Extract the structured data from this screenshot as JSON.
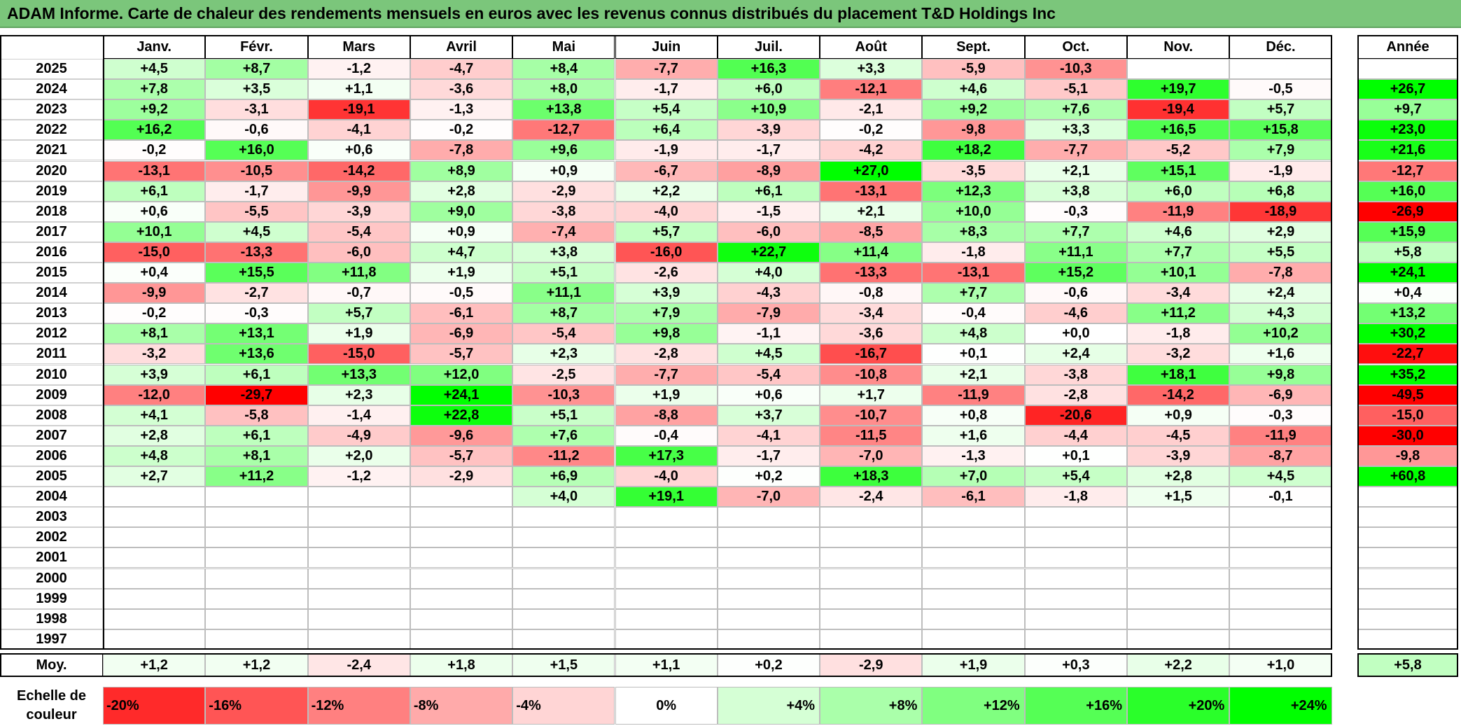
{
  "title": "ADAM Informe. Carte de chaleur des rendements mensuels en euros avec les revenus connus distribués du placement T&D Holdings Inc",
  "chart_data": {
    "type": "heatmap",
    "columns": [
      "Janv.",
      "Févr.",
      "Mars",
      "Avril",
      "Mai",
      "Juin",
      "Juil.",
      "Août",
      "Sept.",
      "Oct.",
      "Nov.",
      "Déc."
    ],
    "year_column_label": "Année",
    "rows": [
      {
        "year": "2025",
        "months": [
          "+4,5",
          "+8,7",
          "-1,2",
          "-4,7",
          "+8,4",
          "-7,7",
          "+16,3",
          "+3,3",
          "-5,9",
          "-10,3",
          "",
          ""
        ],
        "annual": ""
      },
      {
        "year": "2024",
        "months": [
          "+7,8",
          "+3,5",
          "+1,1",
          "-3,6",
          "+8,0",
          "-1,7",
          "+6,0",
          "-12,1",
          "+4,6",
          "-5,1",
          "+19,7",
          "-0,5"
        ],
        "annual": "+26,7"
      },
      {
        "year": "2023",
        "months": [
          "+9,2",
          "-3,1",
          "-19,1",
          "-1,3",
          "+13,8",
          "+5,4",
          "+10,9",
          "-2,1",
          "+9,2",
          "+7,6",
          "-19,4",
          "+5,7"
        ],
        "annual": "+9,7"
      },
      {
        "year": "2022",
        "months": [
          "+16,2",
          "-0,6",
          "-4,1",
          "-0,2",
          "-12,7",
          "+6,4",
          "-3,9",
          "-0,2",
          "-9,8",
          "+3,3",
          "+16,5",
          "+15,8"
        ],
        "annual": "+23,0"
      },
      {
        "year": "2021",
        "months": [
          "-0,2",
          "+16,0",
          "+0,6",
          "-7,8",
          "+9,6",
          "-1,9",
          "-1,7",
          "-4,2",
          "+18,2",
          "-7,7",
          "-5,2",
          "+7,9"
        ],
        "annual": "+21,6"
      },
      {
        "year": "2020",
        "months": [
          "-13,1",
          "-10,5",
          "-14,2",
          "+8,9",
          "+0,9",
          "-6,7",
          "-8,9",
          "+27,0",
          "-3,5",
          "+2,1",
          "+15,1",
          "-1,9"
        ],
        "annual": "-12,7"
      },
      {
        "year": "2019",
        "months": [
          "+6,1",
          "-1,7",
          "-9,9",
          "+2,8",
          "-2,9",
          "+2,2",
          "+6,1",
          "-13,1",
          "+12,3",
          "+3,8",
          "+6,0",
          "+6,8"
        ],
        "annual": "+16,0"
      },
      {
        "year": "2018",
        "months": [
          "+0,6",
          "-5,5",
          "-3,9",
          "+9,0",
          "-3,8",
          "-4,0",
          "-1,5",
          "+2,1",
          "+10,0",
          "-0,3",
          "-11,9",
          "-18,9"
        ],
        "annual": "-26,9"
      },
      {
        "year": "2017",
        "months": [
          "+10,1",
          "+4,5",
          "-5,4",
          "+0,9",
          "-7,4",
          "+5,7",
          "-6,0",
          "-8,5",
          "+8,3",
          "+7,7",
          "+4,6",
          "+2,9"
        ],
        "annual": "+15,9"
      },
      {
        "year": "2016",
        "months": [
          "-15,0",
          "-13,3",
          "-6,0",
          "+4,7",
          "+3,8",
          "-16,0",
          "+22,7",
          "+11,4",
          "-1,8",
          "+11,1",
          "+7,7",
          "+5,5"
        ],
        "annual": "+5,8"
      },
      {
        "year": "2015",
        "months": [
          "+0,4",
          "+15,5",
          "+11,8",
          "+1,9",
          "+5,1",
          "-2,6",
          "+4,0",
          "-13,3",
          "-13,1",
          "+15,2",
          "+10,1",
          "-7,8"
        ],
        "annual": "+24,1"
      },
      {
        "year": "2014",
        "months": [
          "-9,9",
          "-2,7",
          "-0,7",
          "-0,5",
          "+11,1",
          "+3,9",
          "-4,3",
          "-0,8",
          "+7,7",
          "-0,6",
          "-3,4",
          "+2,4"
        ],
        "annual": "+0,4"
      },
      {
        "year": "2013",
        "months": [
          "-0,2",
          "-0,3",
          "+5,7",
          "-6,1",
          "+8,7",
          "+7,9",
          "-7,9",
          "-3,4",
          "-0,4",
          "-4,6",
          "+11,2",
          "+4,3"
        ],
        "annual": "+13,2"
      },
      {
        "year": "2012",
        "months": [
          "+8,1",
          "+13,1",
          "+1,9",
          "-6,9",
          "-5,4",
          "+9,8",
          "-1,1",
          "-3,6",
          "+4,8",
          "+0,0",
          "-1,8",
          "+10,2"
        ],
        "annual": "+30,2"
      },
      {
        "year": "2011",
        "months": [
          "-3,2",
          "+13,6",
          "-15,0",
          "-5,7",
          "+2,3",
          "-2,8",
          "+4,5",
          "-16,7",
          "+0,1",
          "+2,4",
          "-3,2",
          "+1,6"
        ],
        "annual": "-22,7"
      },
      {
        "year": "2010",
        "months": [
          "+3,9",
          "+6,1",
          "+13,3",
          "+12,0",
          "-2,5",
          "-7,7",
          "-5,4",
          "-10,8",
          "+2,1",
          "-3,8",
          "+18,1",
          "+9,8"
        ],
        "annual": "+35,2"
      },
      {
        "year": "2009",
        "months": [
          "-12,0",
          "-29,7",
          "+2,3",
          "+24,1",
          "-10,3",
          "+1,9",
          "+0,6",
          "+1,7",
          "-11,9",
          "-2,8",
          "-14,2",
          "-6,9"
        ],
        "annual": "-49,5"
      },
      {
        "year": "2008",
        "months": [
          "+4,1",
          "-5,8",
          "-1,4",
          "+22,8",
          "+5,1",
          "-8,8",
          "+3,7",
          "-10,7",
          "+0,8",
          "-20,6",
          "+0,9",
          "-0,3"
        ],
        "annual": "-15,0"
      },
      {
        "year": "2007",
        "months": [
          "+2,8",
          "+6,1",
          "-4,9",
          "-9,6",
          "+7,6",
          "-0,4",
          "-4,1",
          "-11,5",
          "+1,6",
          "-4,4",
          "-4,5",
          "-11,9"
        ],
        "annual": "-30,0"
      },
      {
        "year": "2006",
        "months": [
          "+4,8",
          "+8,1",
          "+2,0",
          "-5,7",
          "-11,2",
          "+17,3",
          "-1,7",
          "-7,0",
          "-1,3",
          "+0,1",
          "-3,9",
          "-8,7"
        ],
        "annual": "-9,8"
      },
      {
        "year": "2005",
        "months": [
          "+2,7",
          "+11,2",
          "-1,2",
          "-2,9",
          "+6,9",
          "-4,0",
          "+0,2",
          "+18,3",
          "+7,0",
          "+5,4",
          "+2,8",
          "+4,5"
        ],
        "annual": "+60,8"
      },
      {
        "year": "2004",
        "months": [
          "",
          "",
          "",
          "",
          "+4,0",
          "+19,1",
          "-7,0",
          "-2,4",
          "-6,1",
          "-1,8",
          "+1,5",
          "-0,1"
        ],
        "annual": ""
      },
      {
        "year": "2003",
        "months": [
          "",
          "",
          "",
          "",
          "",
          "",
          "",
          "",
          "",
          "",
          "",
          ""
        ],
        "annual": ""
      },
      {
        "year": "2002",
        "months": [
          "",
          "",
          "",
          "",
          "",
          "",
          "",
          "",
          "",
          "",
          "",
          ""
        ],
        "annual": ""
      },
      {
        "year": "2001",
        "months": [
          "",
          "",
          "",
          "",
          "",
          "",
          "",
          "",
          "",
          "",
          "",
          ""
        ],
        "annual": ""
      },
      {
        "year": "2000",
        "months": [
          "",
          "",
          "",
          "",
          "",
          "",
          "",
          "",
          "",
          "",
          "",
          ""
        ],
        "annual": ""
      },
      {
        "year": "1999",
        "months": [
          "",
          "",
          "",
          "",
          "",
          "",
          "",
          "",
          "",
          "",
          "",
          ""
        ],
        "annual": ""
      },
      {
        "year": "1998",
        "months": [
          "",
          "",
          "",
          "",
          "",
          "",
          "",
          "",
          "",
          "",
          "",
          ""
        ],
        "annual": ""
      },
      {
        "year": "1997",
        "months": [
          "",
          "",
          "",
          "",
          "",
          "",
          "",
          "",
          "",
          "",
          "",
          ""
        ],
        "annual": ""
      }
    ],
    "average": {
      "label": "Moy.",
      "months": [
        "+1,2",
        "+1,2",
        "-2,4",
        "+1,8",
        "+1,5",
        "+1,1",
        "+0,2",
        "-2,9",
        "+1,9",
        "+0,3",
        "+2,2",
        "+1,0"
      ],
      "annual": "+5,8"
    },
    "scale": {
      "label": "Echelle de couleur",
      "steps": [
        {
          "text": "-20%",
          "value": -20
        },
        {
          "text": "-16%",
          "value": -16
        },
        {
          "text": "-12%",
          "value": -12
        },
        {
          "text": "-8%",
          "value": -8
        },
        {
          "text": "-4%",
          "value": -4
        },
        {
          "text": "0%",
          "value": 0
        },
        {
          "text": "+4%",
          "value": 4
        },
        {
          "text": "+8%",
          "value": 8
        },
        {
          "text": "+12%",
          "value": 12
        },
        {
          "text": "+16%",
          "value": 16
        },
        {
          "text": "+20%",
          "value": 20
        },
        {
          "text": "+24%",
          "value": 24
        }
      ]
    },
    "colors": {
      "negative": "#ff0000",
      "zero": "#ffffff",
      "positive": "#00ff00",
      "header": "#7bc67b"
    }
  }
}
